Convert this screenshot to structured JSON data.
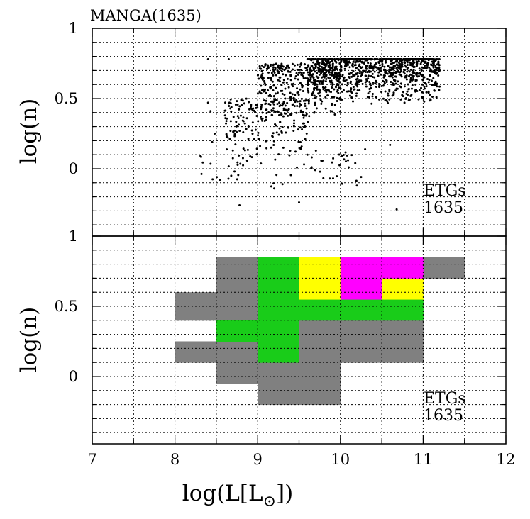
{
  "chart_data": [
    {
      "type": "scatter",
      "title": "MANGA(1635)",
      "xlabel": "log(L[L⊙])",
      "ylabel": "log(n)",
      "xlim": [
        7,
        12
      ],
      "ylim": [
        -0.48,
        1
      ],
      "xticks": [
        "7",
        "8",
        "9",
        "10",
        "11",
        "12"
      ],
      "yticks": [
        {
          "v": 1,
          "label": "1"
        },
        {
          "v": 0.5,
          "label": "0.5"
        },
        {
          "v": 0,
          "label": "0"
        }
      ],
      "grid": "dotted",
      "annotation": [
        "ETGs",
        "1635"
      ],
      "annotation_position": "bottom-right",
      "n_points": 1635,
      "cap_log_n": 0.78,
      "density_regions": [
        {
          "x_range": [
            9.6,
            11.2
          ],
          "y_range": [
            0.45,
            0.78
          ],
          "weight": 0.62
        },
        {
          "x_range": [
            9.0,
            10.0
          ],
          "y_range": [
            0.3,
            0.75
          ],
          "weight": 0.22
        },
        {
          "x_range": [
            8.6,
            9.6
          ],
          "y_range": [
            0.05,
            0.5
          ],
          "weight": 0.12
        },
        {
          "x_range": [
            8.3,
            10.3
          ],
          "y_range": [
            -0.2,
            0.15
          ],
          "weight": 0.04
        }
      ],
      "outliers": [
        {
          "x": 8.4,
          "y": 0.78
        },
        {
          "x": 8.65,
          "y": 0.78
        },
        {
          "x": 8.4,
          "y": 0.47
        },
        {
          "x": 8.43,
          "y": 0.41
        },
        {
          "x": 8.45,
          "y": 0.19
        },
        {
          "x": 8.48,
          "y": 0.25
        },
        {
          "x": 8.78,
          "y": -0.26
        },
        {
          "x": 9.5,
          "y": -0.24
        },
        {
          "x": 10.68,
          "y": -0.29
        },
        {
          "x": 11.2,
          "y": 0.7
        },
        {
          "x": 10.1,
          "y": 0.01
        },
        {
          "x": 10.6,
          "y": 0.17
        },
        {
          "x": 8.68,
          "y": -0.05
        },
        {
          "x": 8.72,
          "y": -0.02
        },
        {
          "x": 9.3,
          "y": -0.11
        },
        {
          "x": 9.2,
          "y": -0.14
        }
      ]
    },
    {
      "type": "heatmap",
      "xlabel": "log(L[L⊙])",
      "ylabel": "log(n)",
      "xlim": [
        7,
        12
      ],
      "ylim": [
        -0.48,
        1
      ],
      "xticks": [
        "7",
        "8",
        "9",
        "10",
        "11",
        "12"
      ],
      "yticks": [
        {
          "v": 1,
          "label": "1"
        },
        {
          "v": 0.5,
          "label": "0.5"
        },
        {
          "v": 0,
          "label": "0"
        }
      ],
      "grid": "dotted",
      "annotation": [
        "ETGs",
        "1635"
      ],
      "annotation_position": "bottom-right",
      "colors": {
        "gray": "#808080",
        "green": "#19cc19",
        "yellow": "#ffff00",
        "magenta": "#ff00ff"
      },
      "cells": [
        {
          "x": [
            8.5,
            9.0
          ],
          "y": [
            0.6,
            0.85
          ],
          "c": "gray"
        },
        {
          "x": [
            8.0,
            9.0
          ],
          "y": [
            0.4,
            0.6
          ],
          "c": "gray"
        },
        {
          "x": [
            8.0,
            9.0
          ],
          "y": [
            0.1,
            0.25
          ],
          "c": "gray"
        },
        {
          "x": [
            8.5,
            9.0
          ],
          "y": [
            -0.05,
            0.1
          ],
          "c": "gray"
        },
        {
          "x": [
            9.0,
            10.0
          ],
          "y": [
            -0.2,
            0.1
          ],
          "c": "gray"
        },
        {
          "x": [
            9.5,
            10.0
          ],
          "y": [
            0.1,
            0.4
          ],
          "c": "gray"
        },
        {
          "x": [
            10.0,
            11.0
          ],
          "y": [
            0.1,
            0.4
          ],
          "c": "gray"
        },
        {
          "x": [
            11.0,
            11.5
          ],
          "y": [
            0.7,
            0.85
          ],
          "c": "gray"
        },
        {
          "x": [
            9.0,
            9.5
          ],
          "y": [
            0.1,
            0.85
          ],
          "c": "green"
        },
        {
          "x": [
            8.5,
            9.0
          ],
          "y": [
            0.25,
            0.4
          ],
          "c": "green"
        },
        {
          "x": [
            9.5,
            11.0
          ],
          "y": [
            0.4,
            0.55
          ],
          "c": "green"
        },
        {
          "x": [
            9.5,
            10.0
          ],
          "y": [
            0.55,
            0.85
          ],
          "c": "yellow"
        },
        {
          "x": [
            10.5,
            11.0
          ],
          "y": [
            0.55,
            0.7
          ],
          "c": "yellow"
        },
        {
          "x": [
            10.0,
            11.0
          ],
          "y": [
            0.7,
            0.85
          ],
          "c": "magenta"
        },
        {
          "x": [
            10.0,
            10.5
          ],
          "y": [
            0.55,
            0.7
          ],
          "c": "magenta"
        }
      ]
    }
  ]
}
